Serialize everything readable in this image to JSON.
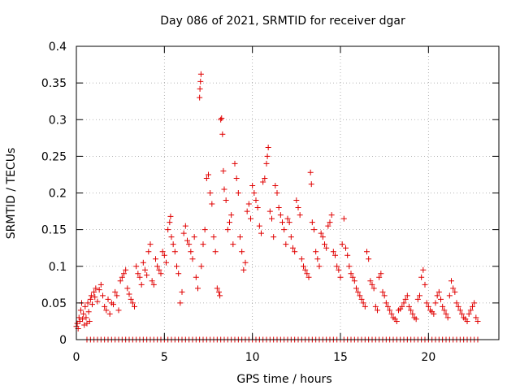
{
  "chart_data": {
    "type": "scatter",
    "title": "Day 086 of 2021, SRMTID for receiver dgar",
    "xlabel": "GPS time / hours",
    "ylabel": "SRMTID / TECUs",
    "xlim": [
      0,
      24
    ],
    "ylim": [
      0,
      0.4
    ],
    "x_ticks": [
      0,
      5,
      10,
      15,
      20
    ],
    "y_ticks": [
      0,
      0.05,
      0.1,
      0.15,
      0.2,
      0.25,
      0.3,
      0.35,
      0.4
    ],
    "x_tick_labels": [
      "0",
      "5",
      "10",
      "15",
      "20"
    ],
    "y_tick_labels": [
      "0",
      "0.05",
      "0.1",
      "0.15",
      "0.2",
      "0.25",
      "0.3",
      "0.35",
      "0.4"
    ],
    "grid": true,
    "marker": "+",
    "series": [
      {
        "name": "SRMTID",
        "color": "#e00000",
        "points": [
          [
            0.0,
            0.018
          ],
          [
            0.05,
            0.022
          ],
          [
            0.1,
            0.015
          ],
          [
            0.15,
            0.03
          ],
          [
            0.2,
            0.025
          ],
          [
            0.25,
            0.04
          ],
          [
            0.3,
            0.05
          ],
          [
            0.35,
            0.028
          ],
          [
            0.4,
            0.035
          ],
          [
            0.45,
            0.02
          ],
          [
            0.5,
            0.045
          ],
          [
            0.55,
            0.03
          ],
          [
            0.6,
            0.022
          ],
          [
            0.65,
            0.05
          ],
          [
            0.7,
            0.038
          ],
          [
            0.75,
            0.025
          ],
          [
            0.8,
            0.055
          ],
          [
            0.85,
            0.06
          ],
          [
            0.9,
            0.048
          ],
          [
            1.0,
            0.065
          ],
          [
            1.05,
            0.058
          ],
          [
            1.1,
            0.07
          ],
          [
            1.2,
            0.052
          ],
          [
            1.3,
            0.068
          ],
          [
            1.4,
            0.075
          ],
          [
            1.5,
            0.06
          ],
          [
            1.6,
            0.045
          ],
          [
            1.7,
            0.04
          ],
          [
            1.8,
            0.055
          ],
          [
            1.9,
            0.035
          ],
          [
            2.0,
            0.05
          ],
          [
            2.1,
            0.048
          ],
          [
            2.2,
            0.065
          ],
          [
            2.3,
            0.06
          ],
          [
            2.4,
            0.04
          ],
          [
            2.5,
            0.08
          ],
          [
            2.6,
            0.085
          ],
          [
            2.7,
            0.09
          ],
          [
            2.8,
            0.095
          ],
          [
            2.9,
            0.07
          ],
          [
            3.0,
            0.062
          ],
          [
            3.1,
            0.055
          ],
          [
            3.2,
            0.05
          ],
          [
            3.3,
            0.045
          ],
          [
            3.4,
            0.1
          ],
          [
            3.5,
            0.09
          ],
          [
            3.6,
            0.085
          ],
          [
            3.7,
            0.075
          ],
          [
            3.8,
            0.105
          ],
          [
            3.9,
            0.095
          ],
          [
            4.0,
            0.088
          ],
          [
            4.1,
            0.12
          ],
          [
            4.2,
            0.13
          ],
          [
            4.3,
            0.08
          ],
          [
            4.4,
            0.075
          ],
          [
            4.5,
            0.11
          ],
          [
            4.6,
            0.1
          ],
          [
            4.7,
            0.095
          ],
          [
            4.8,
            0.09
          ],
          [
            4.9,
            0.12
          ],
          [
            5.0,
            0.115
          ],
          [
            5.1,
            0.105
          ],
          [
            5.2,
            0.15
          ],
          [
            5.3,
            0.16
          ],
          [
            5.35,
            0.168
          ],
          [
            5.4,
            0.14
          ],
          [
            5.5,
            0.13
          ],
          [
            5.6,
            0.12
          ],
          [
            5.7,
            0.1
          ],
          [
            5.8,
            0.09
          ],
          [
            5.9,
            0.05
          ],
          [
            6.0,
            0.065
          ],
          [
            6.1,
            0.145
          ],
          [
            6.2,
            0.155
          ],
          [
            6.3,
            0.135
          ],
          [
            6.4,
            0.13
          ],
          [
            6.5,
            0.12
          ],
          [
            6.6,
            0.11
          ],
          [
            6.7,
            0.14
          ],
          [
            6.8,
            0.085
          ],
          [
            6.9,
            0.07
          ],
          [
            7.0,
            0.33
          ],
          [
            7.02,
            0.342
          ],
          [
            7.05,
            0.352
          ],
          [
            7.08,
            0.362
          ],
          [
            7.1,
            0.1
          ],
          [
            7.2,
            0.13
          ],
          [
            7.3,
            0.15
          ],
          [
            7.4,
            0.22
          ],
          [
            7.5,
            0.225
          ],
          [
            7.6,
            0.2
          ],
          [
            7.7,
            0.185
          ],
          [
            7.8,
            0.14
          ],
          [
            7.9,
            0.12
          ],
          [
            8.0,
            0.07
          ],
          [
            8.1,
            0.065
          ],
          [
            8.15,
            0.06
          ],
          [
            8.2,
            0.3
          ],
          [
            8.25,
            0.302
          ],
          [
            8.3,
            0.28
          ],
          [
            8.35,
            0.23
          ],
          [
            8.4,
            0.205
          ],
          [
            8.5,
            0.19
          ],
          [
            8.6,
            0.15
          ],
          [
            8.7,
            0.16
          ],
          [
            8.8,
            0.17
          ],
          [
            8.9,
            0.13
          ],
          [
            9.0,
            0.24
          ],
          [
            9.1,
            0.22
          ],
          [
            9.2,
            0.2
          ],
          [
            9.3,
            0.14
          ],
          [
            9.4,
            0.12
          ],
          [
            9.5,
            0.095
          ],
          [
            9.6,
            0.105
          ],
          [
            9.7,
            0.175
          ],
          [
            9.8,
            0.185
          ],
          [
            9.9,
            0.165
          ],
          [
            10.0,
            0.21
          ],
          [
            10.1,
            0.2
          ],
          [
            10.2,
            0.19
          ],
          [
            10.3,
            0.18
          ],
          [
            10.4,
            0.155
          ],
          [
            10.5,
            0.145
          ],
          [
            10.6,
            0.215
          ],
          [
            10.7,
            0.22
          ],
          [
            10.8,
            0.24
          ],
          [
            10.85,
            0.25
          ],
          [
            10.9,
            0.262
          ],
          [
            11.0,
            0.175
          ],
          [
            11.1,
            0.165
          ],
          [
            11.2,
            0.14
          ],
          [
            11.3,
            0.21
          ],
          [
            11.4,
            0.2
          ],
          [
            11.5,
            0.18
          ],
          [
            11.6,
            0.17
          ],
          [
            11.7,
            0.16
          ],
          [
            11.8,
            0.15
          ],
          [
            11.9,
            0.13
          ],
          [
            12.0,
            0.165
          ],
          [
            12.1,
            0.16
          ],
          [
            12.2,
            0.14
          ],
          [
            12.3,
            0.125
          ],
          [
            12.4,
            0.12
          ],
          [
            12.5,
            0.19
          ],
          [
            12.6,
            0.18
          ],
          [
            12.7,
            0.17
          ],
          [
            12.8,
            0.11
          ],
          [
            12.9,
            0.1
          ],
          [
            13.0,
            0.095
          ],
          [
            13.1,
            0.09
          ],
          [
            13.2,
            0.085
          ],
          [
            13.3,
            0.228
          ],
          [
            13.35,
            0.212
          ],
          [
            13.4,
            0.16
          ],
          [
            13.5,
            0.15
          ],
          [
            13.6,
            0.12
          ],
          [
            13.7,
            0.11
          ],
          [
            13.8,
            0.1
          ],
          [
            13.9,
            0.145
          ],
          [
            14.0,
            0.14
          ],
          [
            14.1,
            0.13
          ],
          [
            14.2,
            0.125
          ],
          [
            14.3,
            0.155
          ],
          [
            14.4,
            0.16
          ],
          [
            14.5,
            0.17
          ],
          [
            14.6,
            0.12
          ],
          [
            14.7,
            0.115
          ],
          [
            14.8,
            0.1
          ],
          [
            14.9,
            0.095
          ],
          [
            15.0,
            0.085
          ],
          [
            15.1,
            0.13
          ],
          [
            15.2,
            0.165
          ],
          [
            15.3,
            0.125
          ],
          [
            15.4,
            0.115
          ],
          [
            15.5,
            0.1
          ],
          [
            15.6,
            0.09
          ],
          [
            15.7,
            0.085
          ],
          [
            15.8,
            0.08
          ],
          [
            15.9,
            0.07
          ],
          [
            16.0,
            0.065
          ],
          [
            16.1,
            0.06
          ],
          [
            16.2,
            0.055
          ],
          [
            16.3,
            0.05
          ],
          [
            16.4,
            0.045
          ],
          [
            16.5,
            0.12
          ],
          [
            16.6,
            0.11
          ],
          [
            16.7,
            0.08
          ],
          [
            16.8,
            0.075
          ],
          [
            16.9,
            0.07
          ],
          [
            17.0,
            0.045
          ],
          [
            17.1,
            0.04
          ],
          [
            17.2,
            0.085
          ],
          [
            17.3,
            0.09
          ],
          [
            17.4,
            0.065
          ],
          [
            17.5,
            0.06
          ],
          [
            17.6,
            0.05
          ],
          [
            17.7,
            0.045
          ],
          [
            17.8,
            0.04
          ],
          [
            17.9,
            0.035
          ],
          [
            18.0,
            0.03
          ],
          [
            18.1,
            0.028
          ],
          [
            18.2,
            0.025
          ],
          [
            18.3,
            0.04
          ],
          [
            18.4,
            0.042
          ],
          [
            18.5,
            0.045
          ],
          [
            18.6,
            0.05
          ],
          [
            18.7,
            0.055
          ],
          [
            18.8,
            0.06
          ],
          [
            18.9,
            0.045
          ],
          [
            19.0,
            0.04
          ],
          [
            19.1,
            0.035
          ],
          [
            19.2,
            0.03
          ],
          [
            19.3,
            0.028
          ],
          [
            19.4,
            0.055
          ],
          [
            19.5,
            0.06
          ],
          [
            19.6,
            0.085
          ],
          [
            19.7,
            0.095
          ],
          [
            19.8,
            0.075
          ],
          [
            19.9,
            0.05
          ],
          [
            20.0,
            0.045
          ],
          [
            20.1,
            0.04
          ],
          [
            20.2,
            0.038
          ],
          [
            20.3,
            0.035
          ],
          [
            20.4,
            0.05
          ],
          [
            20.5,
            0.06
          ],
          [
            20.6,
            0.065
          ],
          [
            20.7,
            0.055
          ],
          [
            20.8,
            0.045
          ],
          [
            20.9,
            0.04
          ],
          [
            21.0,
            0.035
          ],
          [
            21.1,
            0.03
          ],
          [
            21.2,
            0.06
          ],
          [
            21.3,
            0.08
          ],
          [
            21.4,
            0.07
          ],
          [
            21.5,
            0.065
          ],
          [
            21.6,
            0.05
          ],
          [
            21.7,
            0.045
          ],
          [
            21.8,
            0.04
          ],
          [
            21.9,
            0.035
          ],
          [
            22.0,
            0.03
          ],
          [
            22.1,
            0.028
          ],
          [
            22.2,
            0.025
          ],
          [
            22.3,
            0.035
          ],
          [
            22.4,
            0.04
          ],
          [
            22.5,
            0.045
          ],
          [
            22.6,
            0.05
          ],
          [
            22.7,
            0.03
          ],
          [
            22.8,
            0.025
          ]
        ],
        "zero_x_start": 0.6,
        "zero_x_end": 22.8,
        "zero_x_step": 0.2
      }
    ]
  }
}
